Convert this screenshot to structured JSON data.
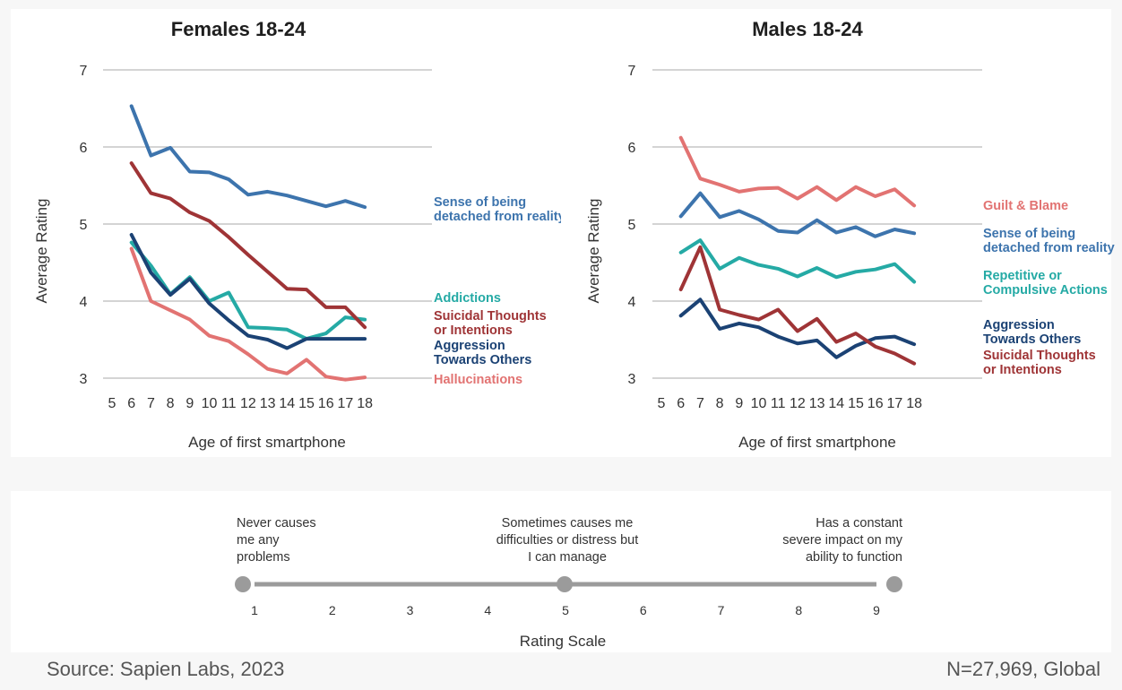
{
  "colors": {
    "blue": "#3d74ad",
    "red": "#9f3436",
    "teal": "#25aaa5",
    "navy": "#1b4274",
    "pink": "#e27372",
    "grid": "#a8a8a8",
    "scale_line": "#9b9b9b"
  },
  "chart_data": [
    {
      "type": "line",
      "title": "Females 18-24",
      "xlabel": "Age of first smartphone",
      "ylabel": "Average Rating",
      "xlim": [
        5,
        18
      ],
      "ylim": [
        3,
        7
      ],
      "x_ticks": [
        5,
        6,
        7,
        8,
        9,
        10,
        11,
        12,
        13,
        14,
        15,
        16,
        17,
        18
      ],
      "y_ticks": [
        3,
        4,
        5,
        6,
        7
      ],
      "x": [
        6,
        7,
        8,
        9,
        10,
        11,
        12,
        13,
        14,
        15,
        16,
        17,
        18
      ],
      "series": [
        {
          "name": "Sense of being detached from reality",
          "label_lines": [
            "Sense of being",
            "detached from reality"
          ],
          "color_key": "blue",
          "values": [
            6.53,
            5.89,
            5.99,
            5.68,
            5.67,
            5.58,
            5.38,
            5.42,
            5.37,
            5.3,
            5.23,
            5.3,
            5.22
          ]
        },
        {
          "name": "Addictions",
          "label_lines": [
            "Addictions"
          ],
          "color_key": "teal",
          "values": [
            4.76,
            4.46,
            4.09,
            4.31,
            4.0,
            4.11,
            3.66,
            3.65,
            3.63,
            3.51,
            3.58,
            3.79,
            3.76
          ]
        },
        {
          "name": "Suicidal Thoughts or Intentions",
          "label_lines": [
            "Suicidal Thoughts",
            "or Intentions"
          ],
          "color_key": "red",
          "values": [
            5.79,
            5.4,
            5.33,
            5.15,
            5.04,
            4.83,
            4.6,
            4.38,
            4.16,
            4.15,
            3.92,
            3.92,
            3.66
          ]
        },
        {
          "name": "Aggression Towards Others",
          "label_lines": [
            "Aggression",
            "Towards Others"
          ],
          "color_key": "navy",
          "values": [
            4.86,
            4.37,
            4.08,
            4.29,
            3.97,
            3.75,
            3.55,
            3.5,
            3.39,
            3.51,
            3.51,
            3.51,
            3.51
          ]
        },
        {
          "name": "Hallucinations",
          "label_lines": [
            "Hallucinations"
          ],
          "color_key": "pink",
          "values": [
            4.68,
            4.0,
            3.88,
            3.76,
            3.55,
            3.48,
            3.31,
            3.12,
            3.06,
            3.24,
            3.02,
            2.98,
            3.01
          ]
        }
      ]
    },
    {
      "type": "line",
      "title": "Males 18-24",
      "xlabel": "Age of first smartphone",
      "ylabel": "Average Rating",
      "xlim": [
        5,
        18
      ],
      "ylim": [
        3,
        7
      ],
      "x_ticks": [
        5,
        6,
        7,
        8,
        9,
        10,
        11,
        12,
        13,
        14,
        15,
        16,
        17,
        18
      ],
      "y_ticks": [
        3,
        4,
        5,
        6,
        7
      ],
      "x": [
        6,
        7,
        8,
        9,
        10,
        11,
        12,
        13,
        14,
        15,
        16,
        17,
        18
      ],
      "series": [
        {
          "name": "Guilt & Blame",
          "label_lines": [
            "Guilt & Blame"
          ],
          "color_key": "pink",
          "values": [
            6.12,
            5.59,
            5.51,
            5.42,
            5.46,
            5.47,
            5.33,
            5.48,
            5.31,
            5.48,
            5.36,
            5.45,
            5.24
          ]
        },
        {
          "name": "Sense of being detached from reality",
          "label_lines": [
            "Sense of being",
            "detached from reality"
          ],
          "color_key": "blue",
          "values": [
            5.1,
            5.4,
            5.09,
            5.17,
            5.06,
            4.91,
            4.89,
            5.05,
            4.89,
            4.96,
            4.84,
            4.93,
            4.88
          ]
        },
        {
          "name": "Repetitive or Compulsive Actions",
          "label_lines": [
            "Repetitive or",
            "Compulsive Actions"
          ],
          "color_key": "teal",
          "values": [
            4.63,
            4.79,
            4.42,
            4.56,
            4.47,
            4.42,
            4.32,
            4.43,
            4.31,
            4.38,
            4.41,
            4.48,
            4.25
          ]
        },
        {
          "name": "Aggression Towards Others",
          "label_lines": [
            "Aggression",
            "Towards Others"
          ],
          "color_key": "navy",
          "values": [
            3.81,
            4.02,
            3.64,
            3.71,
            3.66,
            3.54,
            3.45,
            3.49,
            3.27,
            3.42,
            3.52,
            3.54,
            3.44
          ]
        },
        {
          "name": "Suicidal Thoughts or Intentions",
          "label_lines": [
            "Suicidal Thoughts",
            "or Intentions"
          ],
          "color_key": "red",
          "values": [
            4.15,
            4.7,
            3.89,
            3.82,
            3.76,
            3.89,
            3.61,
            3.77,
            3.47,
            3.58,
            3.41,
            3.32,
            3.19
          ]
        }
      ]
    }
  ],
  "rating_scale": {
    "title": "Rating Scale",
    "numbers": [
      "1",
      "2",
      "3",
      "4",
      "5",
      "6",
      "7",
      "8",
      "9"
    ],
    "markers": [
      1,
      5,
      9
    ],
    "anchor_1": [
      "Never causes",
      "me any",
      "problems"
    ],
    "anchor_5": [
      "Sometimes causes me",
      "difficulties or distress but",
      "I can manage"
    ],
    "anchor_9": [
      "Has a constant",
      "severe impact on my",
      "ability to function"
    ]
  },
  "footer": {
    "source": "Source: Sapien Labs, 2023",
    "sample": "N=27,969, Global"
  }
}
